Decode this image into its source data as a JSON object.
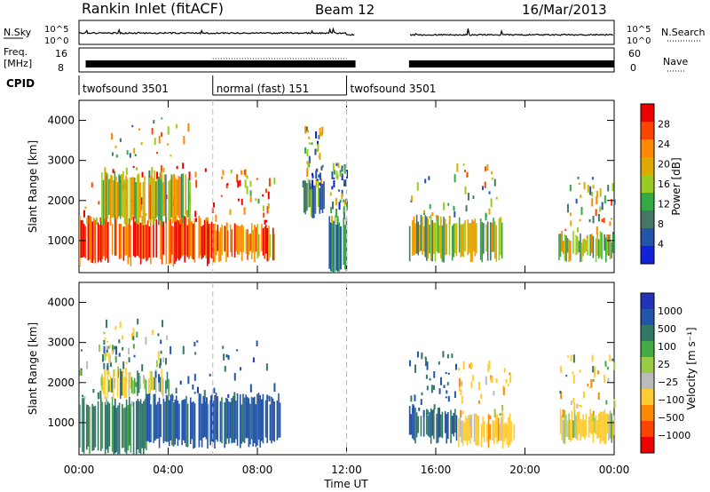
{
  "header": {
    "title": "Rankin Inlet (fitACF)",
    "beam": "Beam 12",
    "date": "16/Mar/2013"
  },
  "strips": {
    "nsky_label": "N.Sky",
    "nsky_ticks": [
      "10^5",
      "10^0"
    ],
    "nsearch_label": "N.Search",
    "nsearch_ticks": [
      "10^5",
      "10^0"
    ],
    "freq_label_1": "Freq.",
    "freq_label_2": "[MHz]",
    "freq_ticks": [
      "16",
      "8"
    ],
    "nave_label": "Nave",
    "nave_ticks": [
      "60",
      "0"
    ],
    "cpid_label": "CPID",
    "cpid_segments": [
      {
        "label": "twofsound 3501",
        "start": 0,
        "end": 6
      },
      {
        "label": "normal (fast) 151",
        "start": 6,
        "end": 12
      },
      {
        "label": "twofsound 3501",
        "start": 12,
        "end": 24
      }
    ]
  },
  "power_panel": {
    "ylabel": "Slant Range [km]",
    "yticks": [
      "4000",
      "3000",
      "2000",
      "1000"
    ],
    "colorbar_label": "Power [dB]",
    "colorbar_ticks": [
      "28",
      "24",
      "20",
      "16",
      "12",
      "8",
      "4"
    ],
    "colors": [
      "#ee0000",
      "#ff4400",
      "#ff8800",
      "#ddaa00",
      "#99cc22",
      "#33aa44",
      "#447766",
      "#2255aa",
      "#1122dd"
    ]
  },
  "velocity_panel": {
    "ylabel": "Slant Range [km]",
    "yticks": [
      "4000",
      "3000",
      "2000",
      "1000"
    ],
    "colorbar_label": "Velocity [m s⁻¹]",
    "colorbar_ticks": [
      "1000",
      "500",
      "100",
      "25",
      "−25",
      "−100",
      "−500",
      "−1000"
    ],
    "colors": [
      "#2233bb",
      "#2255aa",
      "#337766",
      "#44aa44",
      "#99cc44",
      "#bbbbbb",
      "#ffcc33",
      "#ff8800",
      "#ff4400",
      "#ee0000"
    ]
  },
  "xaxis": {
    "ticks": [
      "00:00",
      "04:00",
      "08:00",
      "12:00",
      "16:00",
      "20:00",
      "00:00"
    ],
    "label": "Time UT"
  },
  "chart_data": {
    "type": "heatmap",
    "x_unit": "hours UT",
    "xlim": [
      0,
      24
    ],
    "ylim": [
      200,
      4500
    ],
    "data_gap_hours": [
      12,
      14.8
    ],
    "power_blobs_db": [
      {
        "t0": 0,
        "t1": 6,
        "r0": 500,
        "r1": 1500,
        "value": 28
      },
      {
        "t0": 1,
        "t1": 5,
        "r0": 1500,
        "r1": 2600,
        "value": 18
      },
      {
        "t0": 6,
        "t1": 8.8,
        "r0": 600,
        "r1": 1300,
        "value": 24
      },
      {
        "t0": 10,
        "t1": 11,
        "r0": 1700,
        "r1": 2400,
        "value": 12
      },
      {
        "t0": 11.2,
        "t1": 12,
        "r0": 300,
        "r1": 1500,
        "value": 10
      },
      {
        "t0": 14.8,
        "t1": 19,
        "r0": 600,
        "r1": 1500,
        "value": 16
      },
      {
        "t0": 21.5,
        "t1": 24,
        "r0": 600,
        "r1": 1100,
        "value": 16
      }
    ],
    "velocity_blobs_ms": [
      {
        "t0": 0,
        "t1": 3,
        "r0": 300,
        "r1": 1500,
        "value": 300
      },
      {
        "t0": 1,
        "t1": 4,
        "r0": 1700,
        "r1": 2200,
        "value": 0
      },
      {
        "t0": 3,
        "t1": 9,
        "r0": 500,
        "r1": 1600,
        "value": 700
      },
      {
        "t0": 14.8,
        "t1": 17,
        "r0": 600,
        "r1": 1300,
        "value": 500
      },
      {
        "t0": 17,
        "t1": 19.5,
        "r0": 500,
        "r1": 1100,
        "value": -300
      },
      {
        "t0": 21.5,
        "t1": 24,
        "r0": 600,
        "r1": 1200,
        "value": -200
      }
    ]
  }
}
